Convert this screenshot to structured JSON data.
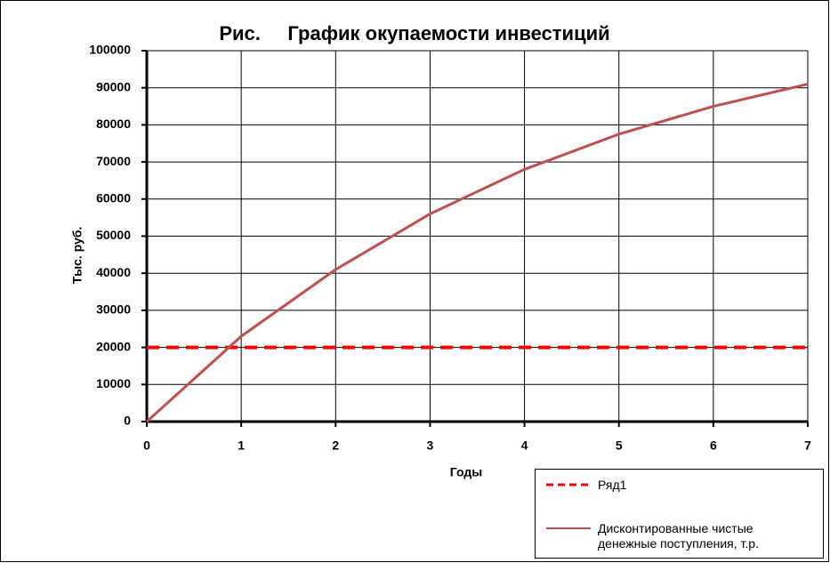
{
  "chart_data": {
    "type": "line",
    "title": "Рис.     График окупаемости инвестиций",
    "xlabel": "Годы",
    "ylabel": "Тыс. руб.",
    "x": [
      0,
      1,
      2,
      3,
      4,
      5,
      6,
      7
    ],
    "series": [
      {
        "name": "Ряд1",
        "color": "#ff0000",
        "dashed": true,
        "values": [
          20000,
          20000,
          20000,
          20000,
          20000,
          20000,
          20000,
          20000
        ]
      },
      {
        "name": "Дисконтированные чистые денежные поступления, т.р.",
        "color": "#c0504d",
        "dashed": false,
        "values": [
          0,
          23000,
          41000,
          56000,
          68000,
          77500,
          85000,
          91000
        ]
      }
    ],
    "xlim": [
      0,
      7
    ],
    "xticks": [
      0,
      1,
      2,
      3,
      4,
      5,
      6,
      7
    ],
    "ylim": [
      0,
      100000
    ],
    "yticks": [
      0,
      10000,
      20000,
      30000,
      40000,
      50000,
      60000,
      70000,
      80000,
      90000,
      100000
    ],
    "grid": true,
    "legend": "bottom-right"
  }
}
